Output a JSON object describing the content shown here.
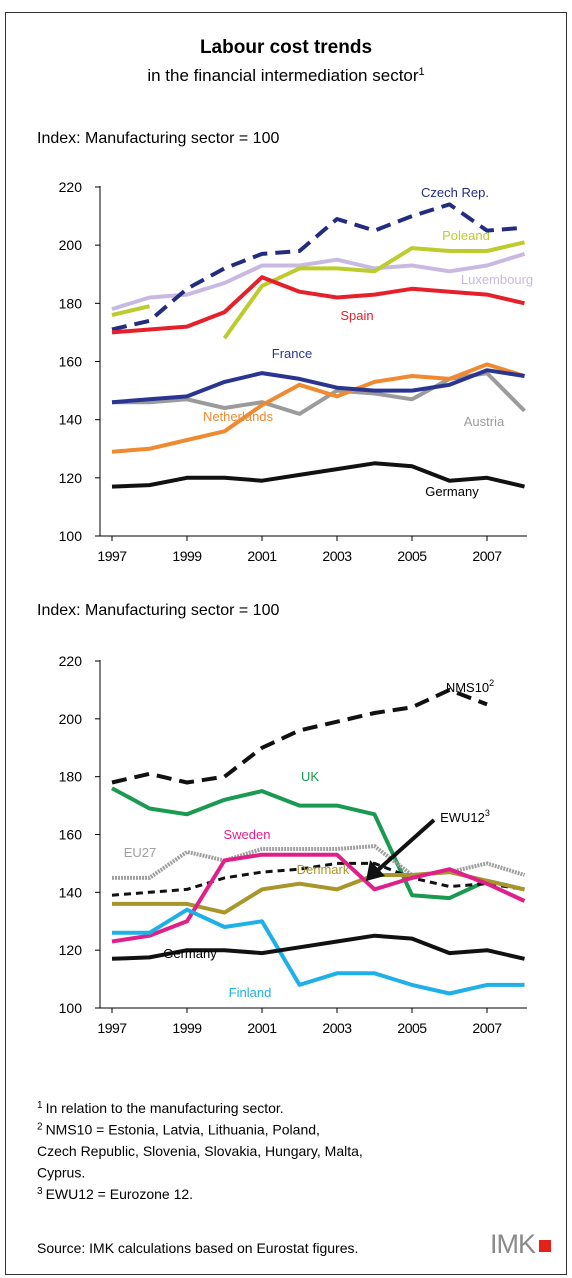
{
  "title": "Labour cost trends",
  "subtitle": "in the financial intermediation sector",
  "subtitle_note": "1",
  "chart_data": [
    {
      "type": "line",
      "ylabel": "Index: Manufacturing sector = 100",
      "x": [
        1997,
        1998,
        1999,
        2000,
        2001,
        2002,
        2003,
        2004,
        2005,
        2006,
        2007,
        2008
      ],
      "xlim": [
        1997,
        2008
      ],
      "xticks": [
        1997,
        1999,
        2001,
        2003,
        2005,
        2007
      ],
      "ylim": [
        100,
        220
      ],
      "yticks": [
        100,
        120,
        140,
        160,
        180,
        200,
        220
      ],
      "series": [
        {
          "name": "Luxembourg",
          "color": "#c9b9e2",
          "values": [
            178,
            182,
            183,
            187,
            193,
            193,
            195,
            192,
            193,
            191,
            193,
            197
          ]
        },
        {
          "name": "Poleand",
          "color": "#bccc2c",
          "values": [
            176,
            179,
            null,
            168,
            186,
            192,
            192,
            191,
            199,
            198,
            198,
            201
          ]
        },
        {
          "name": "Czech Rep.",
          "color": "#232c80",
          "dash": true,
          "values": [
            171,
            174,
            185,
            192,
            197,
            198,
            209,
            205,
            210,
            214,
            205,
            206
          ]
        },
        {
          "name": "Spain",
          "color": "#e5202a",
          "values": [
            170,
            171,
            172,
            177,
            189,
            184,
            182,
            183,
            185,
            184,
            183,
            180
          ]
        },
        {
          "name": "Austria",
          "color": "#9b9b9b",
          "values": [
            146,
            146,
            147,
            144,
            146,
            142,
            150,
            149,
            147,
            154,
            156,
            143
          ]
        },
        {
          "name": "Netherlands",
          "color": "#f08a30",
          "values": [
            129,
            130,
            133,
            136,
            145,
            152,
            148,
            153,
            155,
            154,
            159,
            155
          ]
        },
        {
          "name": "France",
          "color": "#2a3592",
          "values": [
            146,
            147,
            148,
            153,
            156,
            154,
            151,
            150,
            150,
            152,
            157,
            155
          ]
        },
        {
          "name": "Germany",
          "color": "#111111",
          "values": [
            117,
            117.5,
            120,
            120,
            119,
            121,
            123,
            125,
            124,
            119,
            120,
            117
          ]
        }
      ]
    },
    {
      "type": "line",
      "ylabel": "Index: Manufacturing sector = 100",
      "x": [
        1997,
        1998,
        1999,
        2000,
        2001,
        2002,
        2003,
        2004,
        2005,
        2006,
        2007,
        2008
      ],
      "xlim": [
        1997,
        2008
      ],
      "xticks": [
        1997,
        1999,
        2001,
        2003,
        2005,
        2007
      ],
      "ylim": [
        100,
        220
      ],
      "yticks": [
        100,
        120,
        140,
        160,
        180,
        200,
        220
      ],
      "series": [
        {
          "name": "NMS10",
          "note": "2",
          "color": "#111111",
          "dash": true,
          "values": [
            178,
            181,
            178,
            180,
            190,
            196,
            199,
            202,
            204,
            210,
            205,
            null
          ]
        },
        {
          "name": "UK",
          "color": "#1a9a50",
          "values": [
            176,
            169,
            167,
            172,
            175,
            170,
            170,
            167,
            139,
            138,
            144,
            141
          ]
        },
        {
          "name": "EU27",
          "color": "#a0a0a0",
          "hatched": true,
          "values": [
            145,
            145,
            154,
            151,
            155,
            155,
            155,
            156,
            146,
            147,
            150,
            146
          ]
        },
        {
          "name": "EWU12",
          "note": "3",
          "color": "#111111",
          "dash": true,
          "thin": true,
          "values": [
            139,
            140,
            141,
            145,
            147,
            148,
            150,
            150,
            145,
            142,
            143,
            141
          ]
        },
        {
          "name": "Denmark",
          "color": "#a8962a",
          "values": [
            136,
            136,
            136,
            133,
            141,
            143,
            141,
            146,
            146,
            147,
            144,
            141
          ]
        },
        {
          "name": "Sweden",
          "color": "#e0208a",
          "values": [
            123,
            125,
            130,
            151,
            153,
            153,
            153,
            141,
            145,
            148,
            143,
            137
          ]
        },
        {
          "name": "Finland",
          "color": "#1fb0e8",
          "values": [
            126,
            126,
            134,
            128,
            130,
            108,
            112,
            112,
            108,
            105,
            108,
            108
          ]
        },
        {
          "name": "Germany",
          "color": "#111111",
          "values": [
            117,
            117.5,
            120,
            120,
            119,
            121,
            123,
            125,
            124,
            119,
            120,
            117
          ]
        }
      ]
    }
  ],
  "footnotes": [
    {
      "mark": "1",
      "lines": [
        "In relation to the manufacturing sector."
      ]
    },
    {
      "mark": "2",
      "lines": [
        "NMS10 = Estonia, Latvia, Lithuania, Poland,",
        "Czech Republic, Slovenia, Slovakia, Hungary, Malta,",
        "Cyprus."
      ]
    },
    {
      "mark": "3",
      "lines": [
        "EWU12 = Eurozone 12."
      ]
    }
  ],
  "source": "Source: IMK calculations based on Eurostat figures.",
  "logo": "IMK"
}
